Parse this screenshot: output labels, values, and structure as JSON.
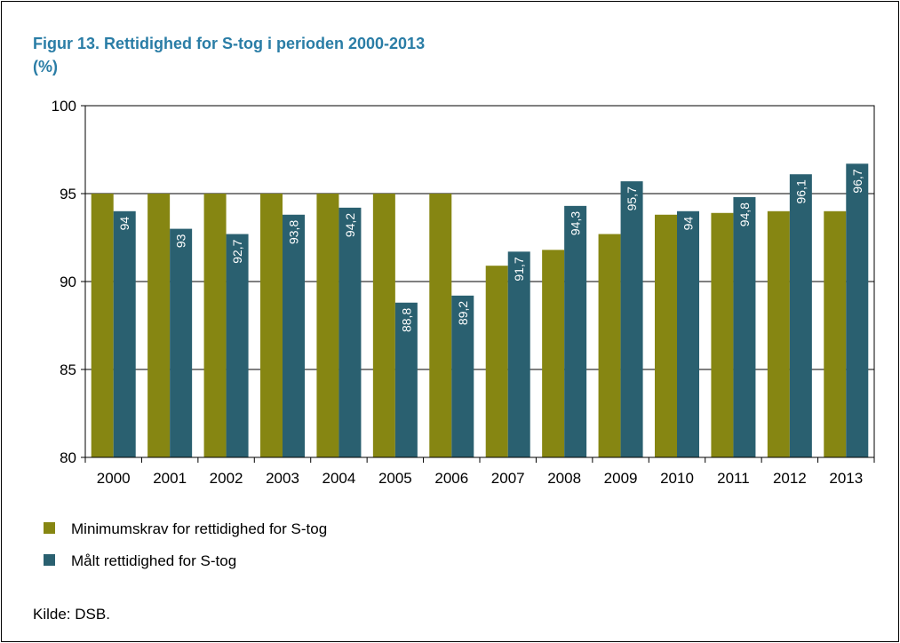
{
  "colors": {
    "series1": "#868612",
    "series2": "#2a6070",
    "title": "#2a7da6",
    "text": "#000000"
  },
  "chart_data": {
    "type": "bar",
    "title": "Figur 13. Rettidighed for S-tog i perioden 2000-2013",
    "subtitle": "(%)",
    "xlabel": "",
    "ylabel": "",
    "ylim": [
      80,
      100
    ],
    "yticks": [
      "80",
      "85",
      "90",
      "95",
      "100"
    ],
    "grid": true,
    "legend_position": "bottom-left",
    "categories": [
      "2000",
      "2001",
      "2002",
      "2003",
      "2004",
      "2005",
      "2006",
      "2007",
      "2008",
      "2009",
      "2010",
      "2011",
      "2012",
      "2013"
    ],
    "series": [
      {
        "name": "Minimumskrav for rettidighed for S-tog",
        "values": [
          95,
          95,
          95,
          95,
          95,
          95,
          95,
          90.9,
          91.8,
          92.7,
          93.8,
          93.9,
          94,
          94
        ]
      },
      {
        "name": "Målt rettidighed for S-tog",
        "values": [
          94,
          93,
          92.7,
          93.8,
          94.2,
          88.8,
          89.2,
          91.7,
          94.3,
          95.7,
          94,
          94.8,
          96.1,
          96.7
        ],
        "labels": [
          "94",
          "93",
          "92,7",
          "93,8",
          "94,2",
          "88,8",
          "89,2",
          "91,7",
          "94,3",
          "95,7",
          "94",
          "94,8",
          "96,1",
          "96,7"
        ]
      }
    ]
  },
  "source": "Kilde:  DSB."
}
